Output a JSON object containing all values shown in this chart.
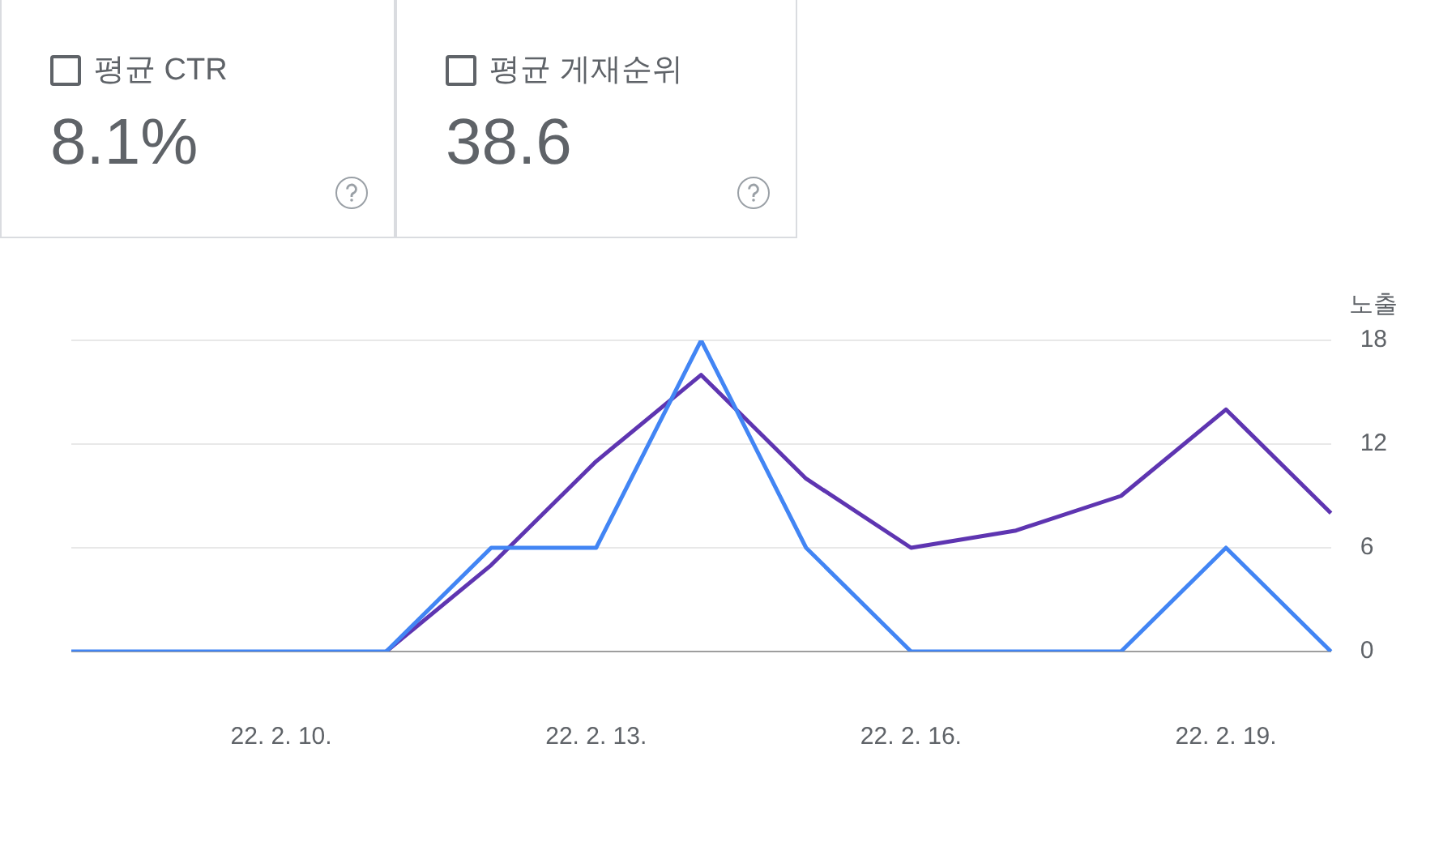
{
  "chart_data": {
    "type": "line",
    "ylabel": "노출",
    "categories": [
      null,
      null,
      "22. 2. 10.",
      null,
      null,
      "22. 2. 13.",
      null,
      null,
      "22. 2. 16.",
      null,
      null,
      "22. 2. 19.",
      null
    ],
    "series": [
      {
        "color": "#4285f4",
        "values": [
          0,
          0,
          0,
          0,
          6,
          6,
          18,
          6,
          0,
          0,
          0,
          6,
          0
        ]
      },
      {
        "color": "#5e35b1",
        "values": [
          null,
          null,
          null,
          0,
          5,
          11,
          16,
          10,
          6,
          7,
          9,
          14,
          8
        ]
      }
    ],
    "ylim": [
      0,
      18
    ],
    "yticks": [
      0,
      6,
      12,
      18
    ],
    "grid": "y",
    "legend": false,
    "marker": "none",
    "line_style": "solid",
    "annotations": [
      "평균 CTR",
      "8.1%",
      "평균 게재순위",
      "38.6"
    ]
  }
}
